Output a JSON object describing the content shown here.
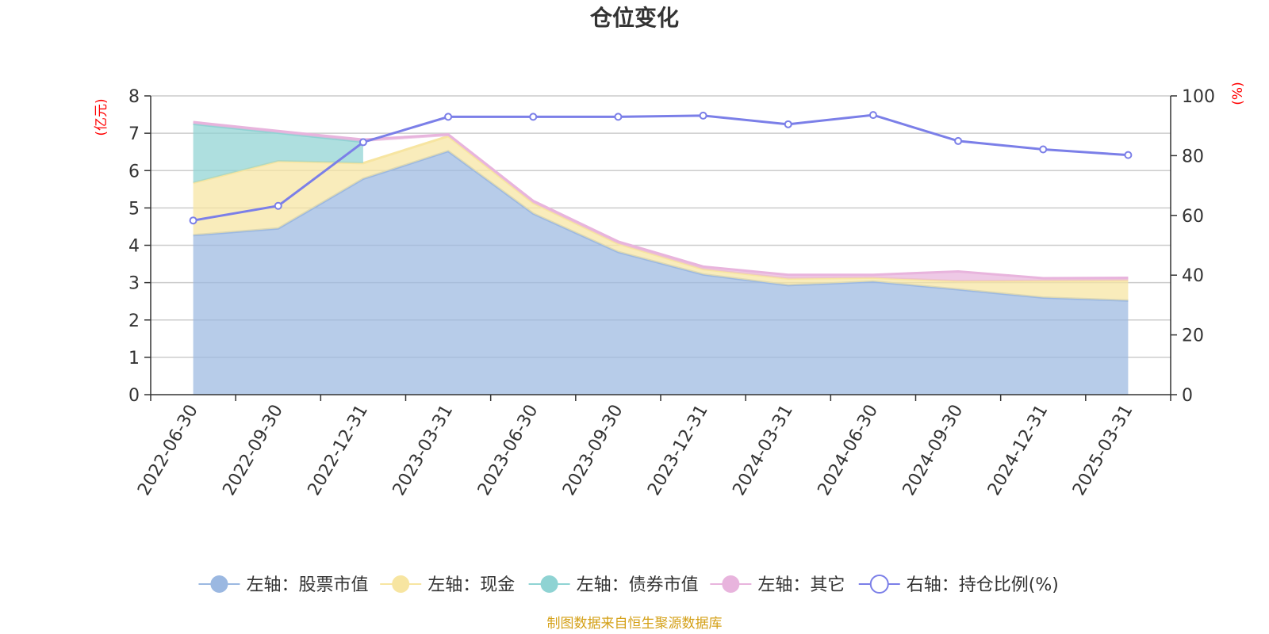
{
  "chart_data": {
    "type": "area",
    "title": "仓位变化",
    "left_axis_unit": "(亿元)",
    "right_axis_unit": "(%)",
    "x": [
      "2022-06-30",
      "2022-09-30",
      "2022-12-31",
      "2023-03-31",
      "2023-06-30",
      "2023-09-30",
      "2023-12-31",
      "2024-03-31",
      "2024-06-30",
      "2024-09-30",
      "2024-12-31",
      "2025-03-31"
    ],
    "ylim_left": [
      0,
      8
    ],
    "yticks_left": [
      0,
      1,
      2,
      3,
      4,
      5,
      6,
      7,
      8
    ],
    "ylim_right": [
      0,
      100
    ],
    "yticks_right": [
      0,
      20,
      40,
      60,
      80,
      100
    ],
    "grid": true,
    "legend_position": "bottom",
    "stacked_series": [
      {
        "name": "左轴：股票市值",
        "color": "#9bb8e1",
        "values": [
          4.27,
          4.45,
          5.78,
          6.52,
          4.85,
          3.82,
          3.22,
          2.93,
          3.03,
          2.82,
          2.6,
          2.52
        ]
      },
      {
        "name": "左轴：现金",
        "color": "#f7e5a1",
        "values": [
          1.4,
          1.8,
          0.42,
          0.4,
          0.28,
          0.22,
          0.14,
          0.18,
          0.1,
          0.22,
          0.45,
          0.54
        ]
      },
      {
        "name": "左轴：债券市值",
        "color": "#8fd3d3",
        "values": [
          1.58,
          0.76,
          0.57,
          0,
          0,
          0,
          0,
          0,
          0,
          0,
          0,
          0
        ]
      },
      {
        "name": "左轴：其它",
        "color": "#e8b4dd",
        "values": [
          0.05,
          0.05,
          0.06,
          0.05,
          0.06,
          0.06,
          0.07,
          0.1,
          0.08,
          0.26,
          0.07,
          0.07
        ]
      }
    ],
    "line_series": {
      "name": "右轴：持仓比例(%)",
      "color": "#7b7fe8",
      "values": [
        58.3,
        63.2,
        84.5,
        93.0,
        93.0,
        93.0,
        93.4,
        90.5,
        93.6,
        84.9,
        82.1,
        80.2
      ]
    }
  },
  "source_text": "制图数据来自恒生聚源数据库"
}
